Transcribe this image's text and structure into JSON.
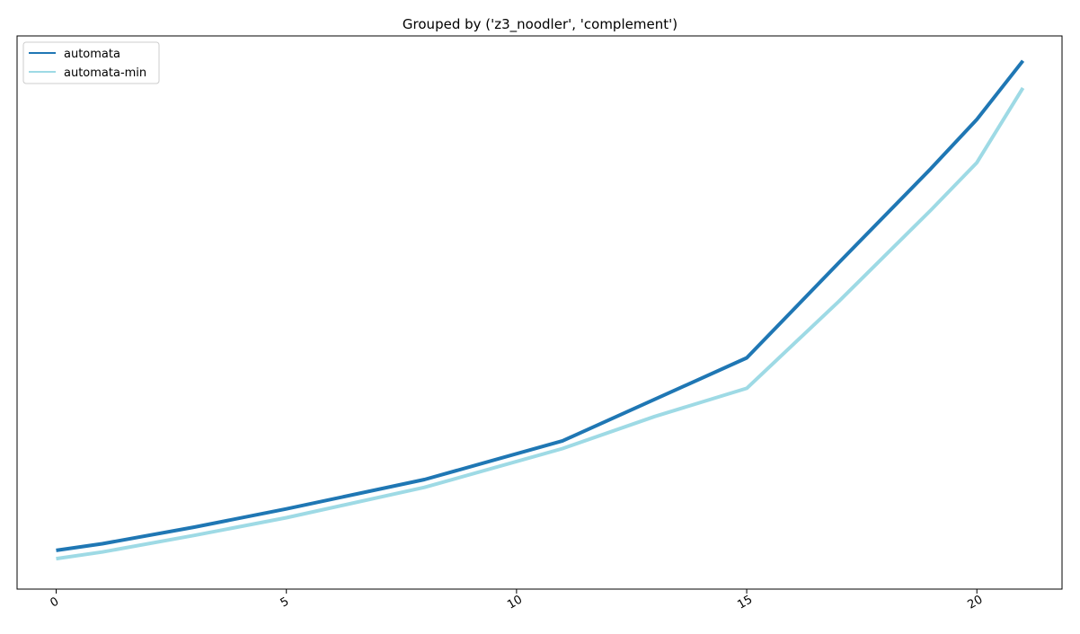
{
  "chart_data": {
    "type": "line",
    "title": "Grouped by ('z3_noodler', 'complement')",
    "xlabel": "",
    "ylabel": "",
    "xlim": [
      -0.85,
      21.85
    ],
    "ylim": [
      0,
      100
    ],
    "y_ticks_shown": false,
    "x_ticks": [
      0,
      5,
      10,
      15,
      20
    ],
    "x_tick_labels": [
      "0",
      "5",
      "10",
      "15",
      "20"
    ],
    "grid": false,
    "legend_position": "top-left",
    "series": [
      {
        "name": "automata",
        "color": "#1f77b4",
        "x": [
          0,
          1,
          3,
          5,
          8,
          11,
          13,
          15,
          17,
          19,
          20,
          21
        ],
        "y": [
          7.0,
          8.2,
          11.2,
          14.5,
          19.8,
          26.8,
          34.3,
          41.8,
          59.0,
          76.0,
          84.9,
          95.5
        ]
      },
      {
        "name": "automata-min",
        "color": "#9edae5",
        "x": [
          0,
          1,
          3,
          5,
          8,
          11,
          13,
          15,
          17,
          19,
          20,
          21
        ],
        "y": [
          5.5,
          6.7,
          9.7,
          12.9,
          18.4,
          25.4,
          31.2,
          36.3,
          52.0,
          68.5,
          77.1,
          90.6
        ]
      }
    ]
  }
}
